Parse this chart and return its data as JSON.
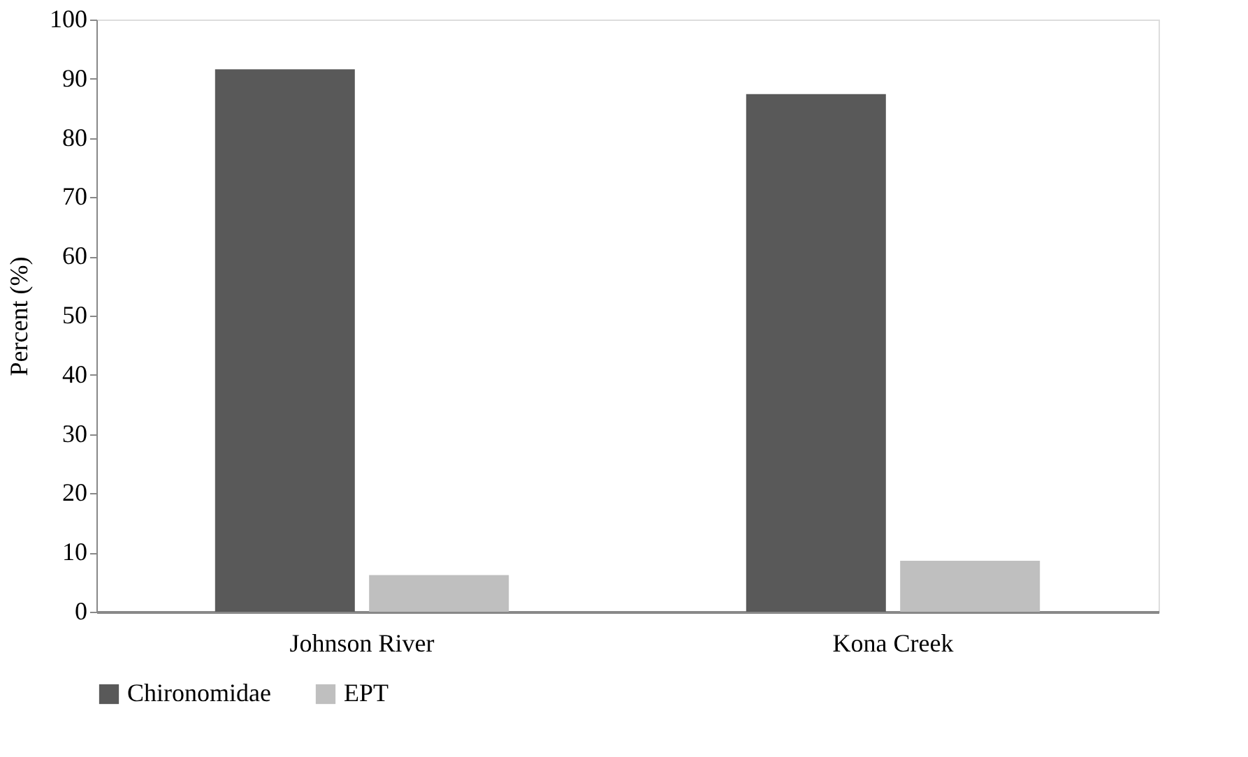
{
  "chart_data": {
    "type": "bar",
    "ylabel": "Percent (%)",
    "categories": [
      "Johnson River",
      "Kona Creek"
    ],
    "series": [
      {
        "name": "Chironomidae",
        "color": "#595959",
        "values": [
          91.6,
          87.4
        ]
      },
      {
        "name": "EPT",
        "color": "#bfbfbf",
        "values": [
          6.2,
          8.6
        ]
      }
    ],
    "ylim": [
      0,
      100
    ],
    "yticks": [
      0,
      10,
      20,
      30,
      40,
      50,
      60,
      70,
      80,
      90,
      100
    ],
    "grid": false,
    "legend": "bottom"
  }
}
